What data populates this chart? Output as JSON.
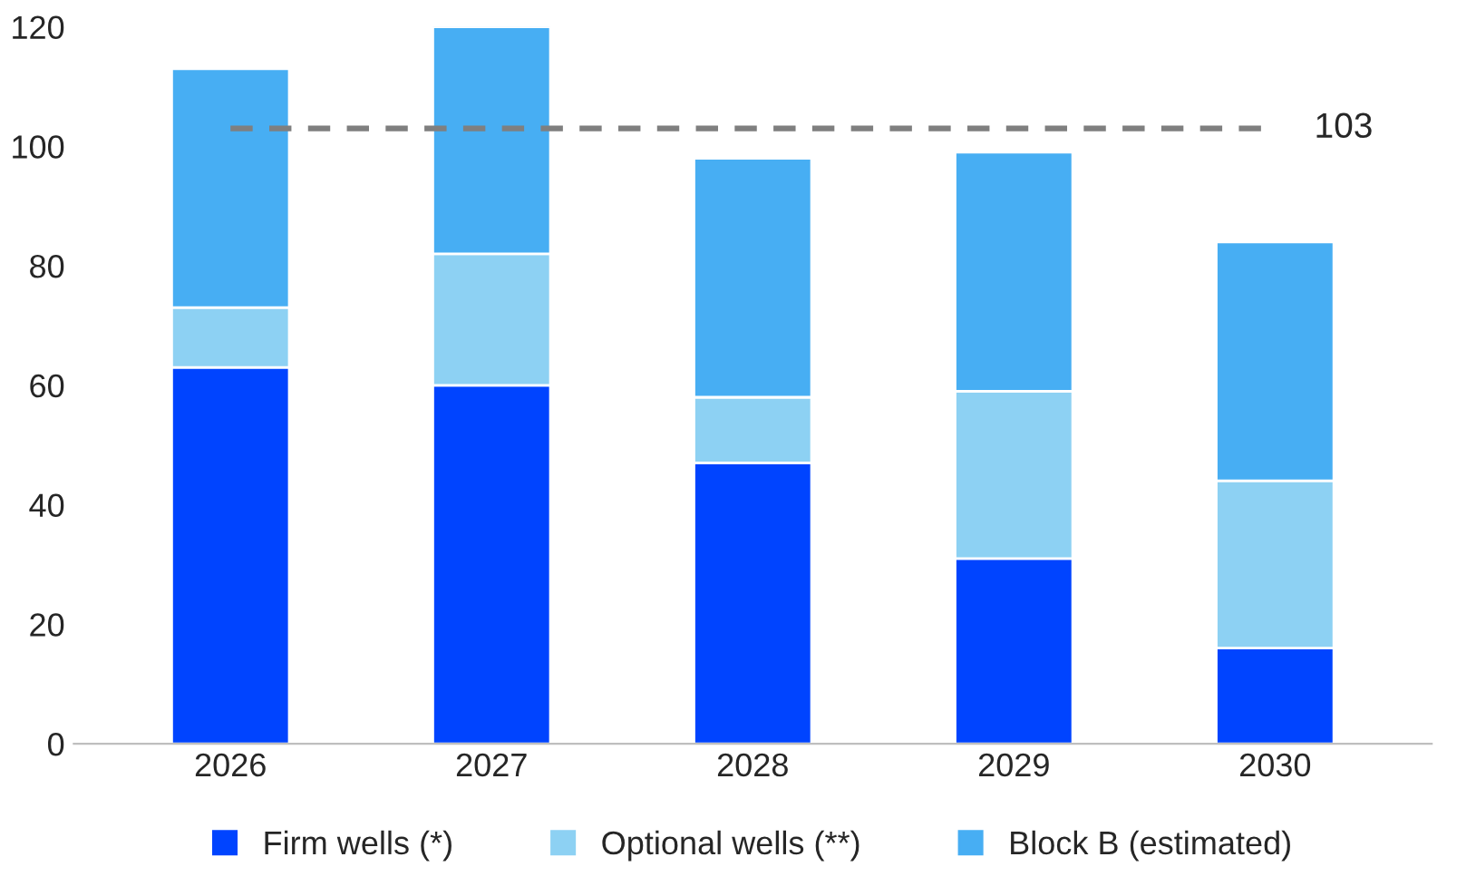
{
  "chart_data": {
    "type": "bar",
    "stacked": true,
    "categories": [
      "2026",
      "2027",
      "2028",
      "2029",
      "2030"
    ],
    "series": [
      {
        "name": "Firm wells (*)",
        "color": "#0044ff",
        "values": [
          63,
          60,
          47,
          31,
          16
        ]
      },
      {
        "name": "Optional wells (**)",
        "color": "#8dd1f3",
        "values": [
          10,
          22,
          11,
          28,
          28
        ]
      },
      {
        "name": "Block B (estimated)",
        "color": "#47aef3",
        "values": [
          40,
          38,
          40,
          40,
          40
        ]
      }
    ],
    "ylim": [
      0,
      120
    ],
    "yticks": [
      0,
      20,
      40,
      60,
      80,
      100,
      120
    ],
    "ref_lines": [
      {
        "axis": "y",
        "value": 103,
        "label": "103",
        "color": "#7f7f7f",
        "line_style": "dashed"
      }
    ],
    "grid": false,
    "legend": "bottom"
  }
}
